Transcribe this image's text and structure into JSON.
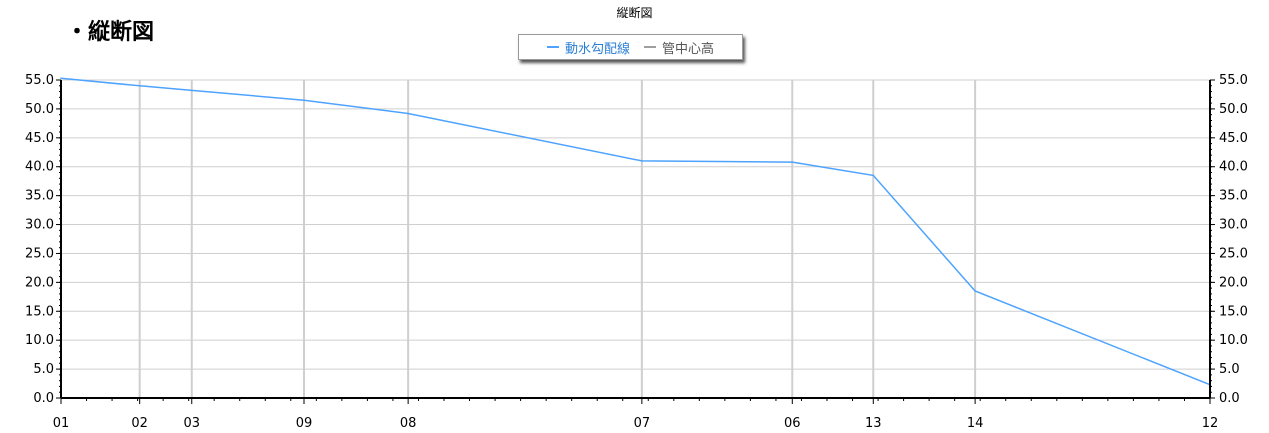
{
  "page_heading": "・縦断図",
  "chart_data": {
    "type": "line",
    "title": "縦断図",
    "legend": {
      "placement": "top-center",
      "entries": [
        {
          "name": "動水勾配線",
          "color": "#4da3ff"
        },
        {
          "name": "管中心高",
          "color": "#9e9e9e"
        }
      ]
    },
    "x_ticks": [
      "01",
      "02",
      "03",
      "09",
      "08",
      "07",
      "06",
      "13",
      "14",
      "12"
    ],
    "x_positions": [
      0,
      68,
      113,
      210,
      300,
      502,
      632,
      702,
      790,
      993
    ],
    "x_range": [
      0,
      993
    ],
    "ylim": [
      0,
      55
    ],
    "y_ticks": [
      "0.0",
      "5.0",
      "10.0",
      "15.0",
      "20.0",
      "25.0",
      "30.0",
      "35.0",
      "40.0",
      "45.0",
      "50.0",
      "55.0"
    ],
    "grid": true,
    "series": [
      {
        "name": "動水勾配線",
        "color": "#4da3ff",
        "x": [
          0,
          68,
          113,
          210,
          300,
          502,
          632,
          702,
          790,
          993
        ],
        "y": [
          55.3,
          54.0,
          53.2,
          51.5,
          49.2,
          41.0,
          40.8,
          38.5,
          18.5,
          2.3
        ]
      }
    ]
  }
}
